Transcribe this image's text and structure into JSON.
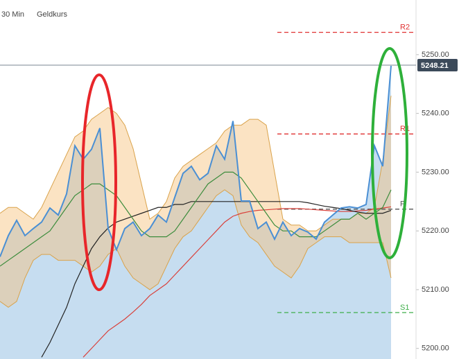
{
  "chart_data": {
    "type": "line",
    "header": [
      "30 Min",
      "Geldkurs"
    ],
    "ylim": [
      5198.2,
      5259.3
    ],
    "yticks": [
      {
        "value": 5200,
        "label": "5200.00"
      },
      {
        "value": 5210,
        "label": "5210.00"
      },
      {
        "value": 5220,
        "label": "5220.00"
      },
      {
        "value": 5230,
        "label": "5230.00"
      },
      {
        "value": 5240,
        "label": "5240.00"
      },
      {
        "value": 5250,
        "label": "5250.00"
      }
    ],
    "last_price": 5248.21,
    "bands": [
      {
        "color": "#d9a24a",
        "fill": "#f7c27a",
        "upper": [
          5223,
          5224,
          5224,
          5223,
          5222,
          5224,
          5227,
          5230,
          5233,
          5236,
          5237,
          5239,
          5240,
          5241,
          5240,
          5238,
          5234,
          5228,
          5222,
          5223,
          5225,
          5229,
          5231,
          5232,
          5233,
          5234,
          5235,
          5237,
          5238,
          5238,
          5239,
          5239,
          5238,
          5230,
          5222,
          5221,
          5221,
          5220,
          5220,
          5221,
          5222,
          5222,
          5222,
          5223,
          5223,
          5224,
          5232,
          5243
        ],
        "lower": [
          5208,
          5207,
          5208,
          5212,
          5215,
          5216,
          5216,
          5215,
          5215,
          5215,
          5214,
          5213,
          5214,
          5216,
          5217,
          5214,
          5212,
          5211,
          5210,
          5211,
          5214,
          5217,
          5219,
          5220,
          5222,
          5224,
          5226,
          5227,
          5226,
          5221,
          5219,
          5218,
          5216,
          5214,
          5213,
          5212,
          5214,
          5217,
          5218,
          5219,
          5219,
          5219,
          5218,
          5218,
          5218,
          5218,
          5218,
          5212
        ]
      }
    ],
    "series": [
      {
        "color": "#4a8fd4",
        "fill": "#c6ddf0",
        "values": [
          5215.6,
          5219.2,
          5221.8,
          5219.2,
          5220.4,
          5221.5,
          5223.9,
          5222.7,
          5226.3,
          5234.5,
          5232.2,
          5233.9,
          5237.5,
          5220.4,
          5216.8,
          5220.4,
          5221.5,
          5219.2,
          5220.4,
          5222.7,
          5221.5,
          5225.7,
          5229.8,
          5231.0,
          5228.7,
          5229.8,
          5234.5,
          5232.2,
          5238.7,
          5225.1,
          5225.1,
          5220.4,
          5221.5,
          5218.6,
          5221.5,
          5219.2,
          5220.4,
          5219.8,
          5218.6,
          5221.5,
          5222.7,
          5223.9,
          5224.1,
          5223.9,
          5224.5,
          5234.5,
          5231.0,
          5248.1
        ]
      },
      {
        "color": "#3c8c3c",
        "values": [
          5214,
          5215,
          5216,
          5217,
          5218,
          5219,
          5220,
          5222,
          5224,
          5226,
          5227,
          5228,
          5228,
          5227,
          5226,
          5224,
          5222,
          5220,
          5219,
          5219,
          5219,
          5220,
          5222,
          5224,
          5226,
          5228,
          5229,
          5230,
          5230,
          5229,
          5227,
          5225,
          5223,
          5221,
          5220,
          5220,
          5219,
          5219,
          5219,
          5220,
          5221,
          5222,
          5222,
          5223,
          5222,
          5223,
          5224,
          5227
        ]
      },
      {
        "color": "#222222",
        "values": [
          null,
          null,
          null,
          null,
          null,
          5198.5,
          5201,
          5204,
          5207,
          5211,
          5214,
          5217,
          5219,
          5220.5,
          5221.5,
          5222,
          5222.5,
          5223,
          5223.5,
          5224,
          5224,
          5224.5,
          5224.5,
          5225,
          5225,
          5225,
          5225,
          5225,
          5225,
          5225,
          5225,
          5225,
          5225,
          5225,
          5225,
          5225,
          5225,
          5224.8,
          5224.5,
          5224.2,
          5224,
          5223.8,
          5223.5,
          5223.2,
          5223,
          5223,
          5223,
          5223.5
        ]
      },
      {
        "color": "#d9403a",
        "values": [
          null,
          null,
          null,
          null,
          null,
          null,
          null,
          null,
          null,
          null,
          5198.5,
          5200,
          5201.5,
          5203,
          5204,
          5205,
          5206.2,
          5207.5,
          5209,
          5210,
          5211,
          5212.5,
          5214,
          5215.5,
          5217,
          5218.5,
          5220,
          5221.5,
          5222.5,
          5223,
          5223.3,
          5223.5,
          5223.6,
          5223.7,
          5223.8,
          5223.8,
          5223.8,
          5223.7,
          5223.6,
          5223.5,
          5223.4,
          5223.3,
          5223.3,
          5223.4,
          5223.5,
          5223.7,
          5223.9,
          5224.1
        ]
      }
    ],
    "levels": [
      {
        "label": "R2",
        "value": 5253.8,
        "color": "#e03030"
      },
      {
        "label": "R1",
        "value": 5236.5,
        "color": "#e03030"
      },
      {
        "label": "P",
        "value": 5223.7,
        "color": "#555555"
      },
      {
        "label": "S1",
        "value": 5206.1,
        "color": "#3fae4a"
      }
    ]
  }
}
